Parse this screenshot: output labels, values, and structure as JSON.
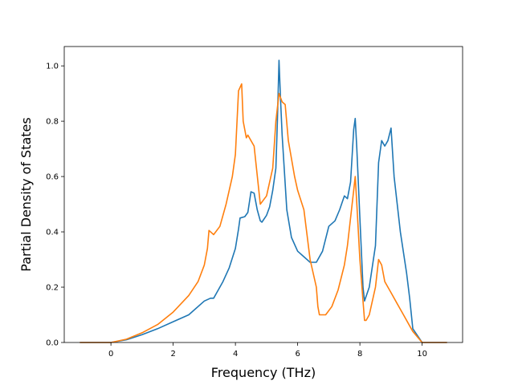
{
  "chart_data": {
    "type": "line",
    "title": "",
    "xlabel": "Frequency (THz)",
    "ylabel": "Partial Density of States",
    "xlim": [
      -1.5,
      11.3
    ],
    "ylim": [
      0,
      1.07
    ],
    "xticks": [
      0,
      2,
      4,
      6,
      8,
      10
    ],
    "xtick_labels": [
      "0",
      "2",
      "4",
      "6",
      "8",
      "10"
    ],
    "yticks": [
      0.0,
      0.2,
      0.4,
      0.6,
      0.8,
      1.0
    ],
    "ytick_labels": [
      "0.0",
      "0.2",
      "0.4",
      "0.6",
      "0.8",
      "1.0"
    ],
    "grid": false,
    "legend": "none",
    "series": [
      {
        "color": "#1f77b4",
        "points": [
          [
            -1.0,
            0
          ],
          [
            0.0,
            0
          ],
          [
            0.5,
            0.01
          ],
          [
            1.0,
            0.028
          ],
          [
            1.5,
            0.05
          ],
          [
            2.0,
            0.075
          ],
          [
            2.5,
            0.1
          ],
          [
            3.0,
            0.15
          ],
          [
            3.2,
            0.16
          ],
          [
            3.3,
            0.16
          ],
          [
            3.4,
            0.18
          ],
          [
            3.6,
            0.22
          ],
          [
            3.8,
            0.27
          ],
          [
            4.0,
            0.34
          ],
          [
            4.1,
            0.41
          ],
          [
            4.15,
            0.45
          ],
          [
            4.3,
            0.455
          ],
          [
            4.4,
            0.47
          ],
          [
            4.5,
            0.545
          ],
          [
            4.6,
            0.54
          ],
          [
            4.7,
            0.48
          ],
          [
            4.8,
            0.44
          ],
          [
            4.85,
            0.435
          ],
          [
            5.0,
            0.46
          ],
          [
            5.1,
            0.49
          ],
          [
            5.2,
            0.55
          ],
          [
            5.3,
            0.63
          ],
          [
            5.35,
            0.8
          ],
          [
            5.4,
            1.02
          ],
          [
            5.45,
            0.88
          ],
          [
            5.5,
            0.75
          ],
          [
            5.65,
            0.48
          ],
          [
            5.8,
            0.38
          ],
          [
            6.0,
            0.33
          ],
          [
            6.2,
            0.31
          ],
          [
            6.4,
            0.29
          ],
          [
            6.6,
            0.29
          ],
          [
            6.8,
            0.33
          ],
          [
            7.0,
            0.42
          ],
          [
            7.2,
            0.44
          ],
          [
            7.35,
            0.48
          ],
          [
            7.5,
            0.53
          ],
          [
            7.6,
            0.52
          ],
          [
            7.7,
            0.58
          ],
          [
            7.8,
            0.77
          ],
          [
            7.85,
            0.81
          ],
          [
            7.9,
            0.7
          ],
          [
            8.0,
            0.45
          ],
          [
            8.1,
            0.2
          ],
          [
            8.15,
            0.15
          ],
          [
            8.3,
            0.2
          ],
          [
            8.5,
            0.35
          ],
          [
            8.6,
            0.65
          ],
          [
            8.7,
            0.73
          ],
          [
            8.8,
            0.71
          ],
          [
            8.9,
            0.73
          ],
          [
            9.0,
            0.775
          ],
          [
            9.1,
            0.6
          ],
          [
            9.3,
            0.4
          ],
          [
            9.5,
            0.25
          ],
          [
            9.6,
            0.16
          ],
          [
            9.7,
            0.05
          ],
          [
            10.0,
            0
          ],
          [
            10.8,
            0
          ]
        ]
      },
      {
        "color": "#ff7f0e",
        "points": [
          [
            -1.0,
            0
          ],
          [
            0.0,
            0
          ],
          [
            0.5,
            0.012
          ],
          [
            1.0,
            0.035
          ],
          [
            1.5,
            0.065
          ],
          [
            2.0,
            0.11
          ],
          [
            2.5,
            0.17
          ],
          [
            2.8,
            0.22
          ],
          [
            3.0,
            0.28
          ],
          [
            3.1,
            0.34
          ],
          [
            3.15,
            0.405
          ],
          [
            3.3,
            0.39
          ],
          [
            3.5,
            0.42
          ],
          [
            3.7,
            0.5
          ],
          [
            3.9,
            0.6
          ],
          [
            4.0,
            0.68
          ],
          [
            4.1,
            0.91
          ],
          [
            4.2,
            0.935
          ],
          [
            4.25,
            0.8
          ],
          [
            4.35,
            0.74
          ],
          [
            4.4,
            0.75
          ],
          [
            4.5,
            0.73
          ],
          [
            4.6,
            0.71
          ],
          [
            4.8,
            0.5
          ],
          [
            5.0,
            0.53
          ],
          [
            5.2,
            0.63
          ],
          [
            5.3,
            0.8
          ],
          [
            5.4,
            0.9
          ],
          [
            5.5,
            0.87
          ],
          [
            5.6,
            0.86
          ],
          [
            5.7,
            0.73
          ],
          [
            5.9,
            0.6
          ],
          [
            6.0,
            0.55
          ],
          [
            6.2,
            0.48
          ],
          [
            6.4,
            0.3
          ],
          [
            6.6,
            0.2
          ],
          [
            6.65,
            0.13
          ],
          [
            6.7,
            0.1
          ],
          [
            6.9,
            0.1
          ],
          [
            7.1,
            0.13
          ],
          [
            7.3,
            0.19
          ],
          [
            7.5,
            0.28
          ],
          [
            7.6,
            0.35
          ],
          [
            7.7,
            0.45
          ],
          [
            7.8,
            0.55
          ],
          [
            7.85,
            0.6
          ],
          [
            7.9,
            0.5
          ],
          [
            8.0,
            0.3
          ],
          [
            8.1,
            0.15
          ],
          [
            8.15,
            0.08
          ],
          [
            8.2,
            0.08
          ],
          [
            8.3,
            0.1
          ],
          [
            8.5,
            0.2
          ],
          [
            8.6,
            0.3
          ],
          [
            8.7,
            0.28
          ],
          [
            8.8,
            0.22
          ],
          [
            9.0,
            0.18
          ],
          [
            9.2,
            0.14
          ],
          [
            9.4,
            0.1
          ],
          [
            9.6,
            0.06
          ],
          [
            9.7,
            0.04
          ],
          [
            10.0,
            0
          ],
          [
            10.8,
            0
          ]
        ]
      }
    ]
  }
}
